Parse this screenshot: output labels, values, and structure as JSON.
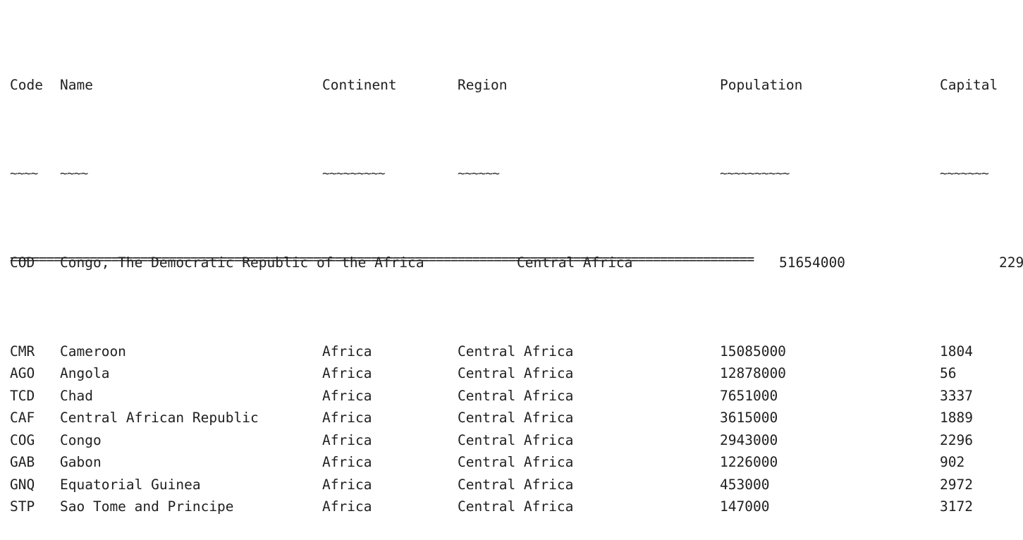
{
  "header": {
    "code": "Code",
    "name": "Name",
    "continent": "Continent",
    "region": "Region",
    "population": "Population",
    "capital": "Capital"
  },
  "underline": {
    "code": "~~~~",
    "name": "~~~~",
    "continent": "~~~~~~~~~",
    "region": "~~~~~~",
    "population": "~~~~~~~~~~",
    "capital": "~~~~~~~"
  },
  "overflow_row": {
    "code": "COD",
    "name": "Congo, The Democratic Republic of the Africa",
    "region": "Central Africa",
    "population": "51654000",
    "capital": "229"
  },
  "rows": [
    {
      "code": "CMR",
      "name": "Cameroon",
      "continent": "Africa",
      "region": "Central Africa",
      "population": "15085000",
      "capital": "1804"
    },
    {
      "code": "AGO",
      "name": "Angola",
      "continent": "Africa",
      "region": "Central Africa",
      "population": "12878000",
      "capital": "56"
    },
    {
      "code": "TCD",
      "name": "Chad",
      "continent": "Africa",
      "region": "Central Africa",
      "population": "7651000",
      "capital": "3337"
    },
    {
      "code": "CAF",
      "name": "Central African Republic",
      "continent": "Africa",
      "region": "Central Africa",
      "population": "3615000",
      "capital": "1889"
    },
    {
      "code": "COG",
      "name": "Congo",
      "continent": "Africa",
      "region": "Central Africa",
      "population": "2943000",
      "capital": "2296"
    },
    {
      "code": "GAB",
      "name": "Gabon",
      "continent": "Africa",
      "region": "Central Africa",
      "population": "1226000",
      "capital": "902"
    },
    {
      "code": "GNQ",
      "name": "Equatorial Guinea",
      "continent": "Africa",
      "region": "Central Africa",
      "population": "453000",
      "capital": "2972"
    },
    {
      "code": "STP",
      "name": "Sao Tome and Principe",
      "continent": "Africa",
      "region": "Central Africa",
      "population": "147000",
      "capital": "3172"
    }
  ],
  "separator": "======================================================================================================="
}
